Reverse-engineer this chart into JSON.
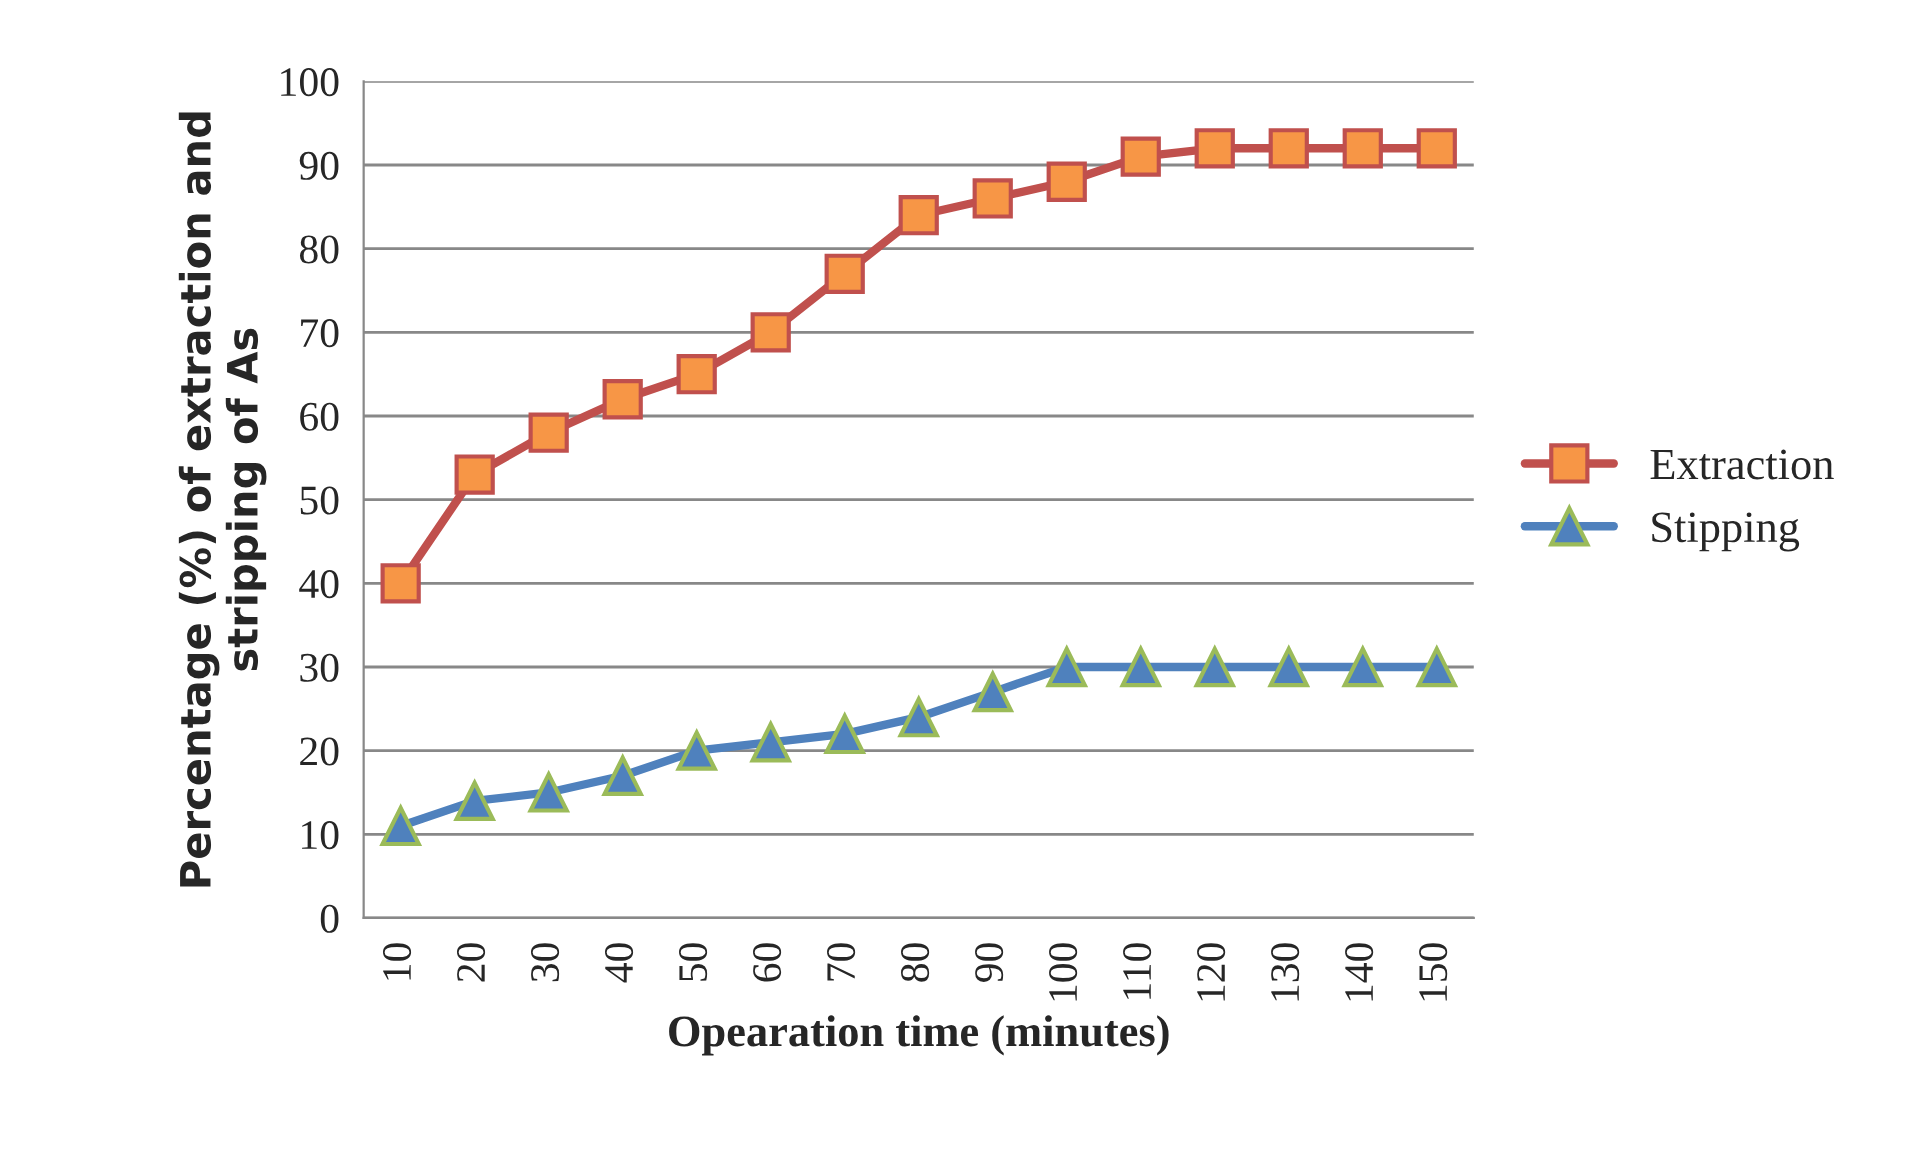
{
  "chart_data": {
    "type": "line",
    "xlabel": "Opearation time (minutes)",
    "ylabel": "Percentage (%) of extraction and\nstripping of As",
    "categories": [
      "10",
      "20",
      "30",
      "40",
      "50",
      "60",
      "70",
      "80",
      "90",
      "100",
      "110",
      "120",
      "130",
      "140",
      "150"
    ],
    "series": [
      {
        "name": "Extraction",
        "color": "#c0504d",
        "marker": "square",
        "values": [
          40,
          53,
          58,
          62,
          65,
          70,
          77,
          84,
          86,
          88,
          91,
          92,
          92,
          92,
          92
        ]
      },
      {
        "name": "Stipping",
        "color": "#4f81bd",
        "marker": "triangle",
        "values": [
          11,
          14,
          15,
          17,
          20,
          21,
          22,
          24,
          27,
          30,
          30,
          30,
          30,
          30,
          30
        ]
      }
    ],
    "ylim": [
      0,
      100
    ],
    "yticks": [
      0,
      10,
      20,
      30,
      40,
      50,
      60,
      70,
      80,
      90,
      100
    ],
    "grid": "y",
    "legend": "right"
  }
}
